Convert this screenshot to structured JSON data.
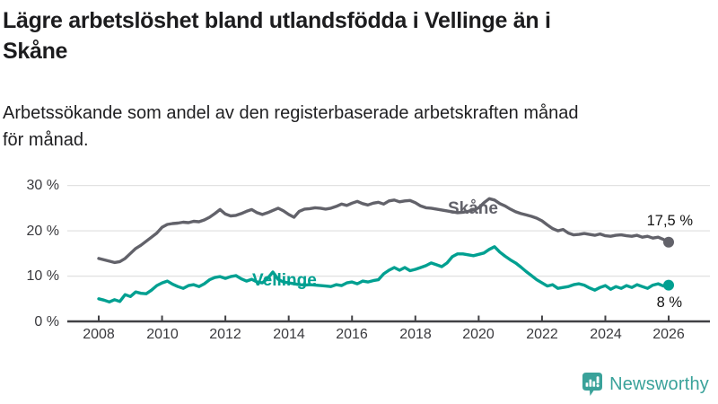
{
  "header": {
    "title_lines": [
      "Lägre arbetslöshet bland utlandsfödda i Vellinge än i",
      "Skåne"
    ],
    "subtitle_lines": [
      "Arbetssökande som andel av den registerbaserade arbetskraften månad",
      "för månad."
    ]
  },
  "colors": {
    "skane_line": "#62626a",
    "vellinge_line": "#00a091",
    "grid": "#e2e2e2",
    "axis": "#414145",
    "tick_text": "#3a3a3e",
    "title_text": "#1c1c1e",
    "logo_teal": "#3aa29a"
  },
  "chart_data": {
    "type": "line",
    "title": "Lägre arbetslöshet bland utlandsfödda i Vellinge än i Skåne",
    "subtitle": "Arbetssökande som andel av den registerbaserade arbetskraften månad för månad.",
    "xlabel": "",
    "ylabel": "",
    "ylim": [
      0,
      34
    ],
    "xlim": [
      2007,
      2027.3
    ],
    "grid": "horizontal",
    "legend_position": "inline-labels",
    "y_ticks": [
      {
        "value": 0,
        "label": "0 %"
      },
      {
        "value": 10,
        "label": "10 %"
      },
      {
        "value": 20,
        "label": "20 %"
      },
      {
        "value": 30,
        "label": "30 %"
      }
    ],
    "x_ticks": [
      {
        "value": 2008,
        "label": "2008"
      },
      {
        "value": 2010,
        "label": "2010"
      },
      {
        "value": 2012,
        "label": "2012"
      },
      {
        "value": 2014,
        "label": "2014"
      },
      {
        "value": 2016,
        "label": "2016"
      },
      {
        "value": 2018,
        "label": "2018"
      },
      {
        "value": 2020,
        "label": "2020"
      },
      {
        "value": 2022,
        "label": "2022"
      },
      {
        "value": 2024,
        "label": "2024"
      },
      {
        "value": 2026,
        "label": "2026"
      }
    ],
    "series": [
      {
        "name": "Skåne",
        "color": "#62626a",
        "end_label": "17,5 %",
        "end_value": 17.5,
        "start_year": 2008,
        "step_months": 2,
        "values": [
          13.9,
          13.6,
          13.3,
          13.0,
          13.2,
          13.9,
          15.0,
          16.1,
          16.8,
          17.7,
          18.6,
          19.5,
          20.8,
          21.4,
          21.6,
          21.7,
          21.9,
          21.8,
          22.1,
          22.0,
          22.4,
          23.0,
          23.8,
          24.7,
          23.7,
          23.3,
          23.4,
          23.8,
          24.3,
          24.7,
          24.0,
          23.6,
          24.0,
          24.5,
          25.0,
          24.4,
          23.6,
          23.0,
          24.3,
          24.8,
          24.9,
          25.1,
          25.0,
          24.8,
          25.0,
          25.4,
          25.9,
          25.6,
          26.1,
          26.5,
          26.0,
          25.7,
          26.1,
          26.3,
          25.9,
          26.6,
          26.8,
          26.4,
          26.6,
          26.7,
          26.2,
          25.5,
          25.1,
          25.0,
          24.8,
          24.6,
          24.4,
          24.2,
          24.0,
          24.1,
          24.3,
          24.6,
          25.1,
          26.2,
          27.1,
          26.8,
          26.0,
          25.5,
          24.8,
          24.2,
          23.8,
          23.5,
          23.2,
          22.8,
          22.2,
          21.3,
          20.5,
          20.0,
          20.3,
          19.5,
          19.1,
          19.2,
          19.4,
          19.2,
          19.0,
          19.3,
          18.9,
          18.8,
          19.0,
          19.1,
          18.9,
          18.8,
          19.0,
          18.6,
          18.8,
          18.4,
          18.6,
          18.1,
          17.5
        ]
      },
      {
        "name": "Vellinge",
        "color": "#00a091",
        "end_label": "8 %",
        "end_value": 8,
        "start_year": 2008,
        "step_months": 2,
        "values": [
          5.0,
          4.7,
          4.3,
          4.8,
          4.4,
          5.9,
          5.5,
          6.5,
          6.2,
          6.1,
          6.9,
          7.9,
          8.5,
          8.9,
          8.2,
          7.7,
          7.3,
          7.9,
          8.1,
          7.7,
          8.3,
          9.2,
          9.7,
          9.9,
          9.5,
          9.9,
          10.1,
          9.4,
          8.9,
          9.3,
          8.7,
          8.5,
          9.5,
          10.9,
          9.3,
          8.7,
          8.5,
          8.3,
          8.1,
          8.0,
          8.1,
          8.0,
          7.9,
          7.8,
          7.7,
          8.1,
          7.9,
          8.5,
          8.7,
          8.3,
          8.9,
          8.7,
          9.0,
          9.2,
          10.5,
          11.3,
          11.9,
          11.3,
          11.9,
          11.2,
          11.5,
          11.9,
          12.3,
          12.9,
          12.5,
          12.1,
          12.9,
          14.3,
          14.9,
          14.9,
          14.7,
          14.5,
          14.8,
          15.1,
          15.9,
          16.5,
          15.3,
          14.4,
          13.6,
          12.9,
          12.0,
          11.0,
          10.1,
          9.2,
          8.5,
          7.8,
          8.1,
          7.3,
          7.5,
          7.7,
          8.1,
          8.3,
          8.0,
          7.4,
          6.9,
          7.5,
          7.9,
          7.1,
          7.7,
          7.3,
          7.9,
          7.5,
          8.1,
          7.7,
          7.3,
          8.0,
          8.3,
          7.8,
          8.0
        ]
      }
    ]
  },
  "footer": {
    "brand": "Newsworthy",
    "logo_icon": "bar-chart-speech-bubble-icon"
  }
}
